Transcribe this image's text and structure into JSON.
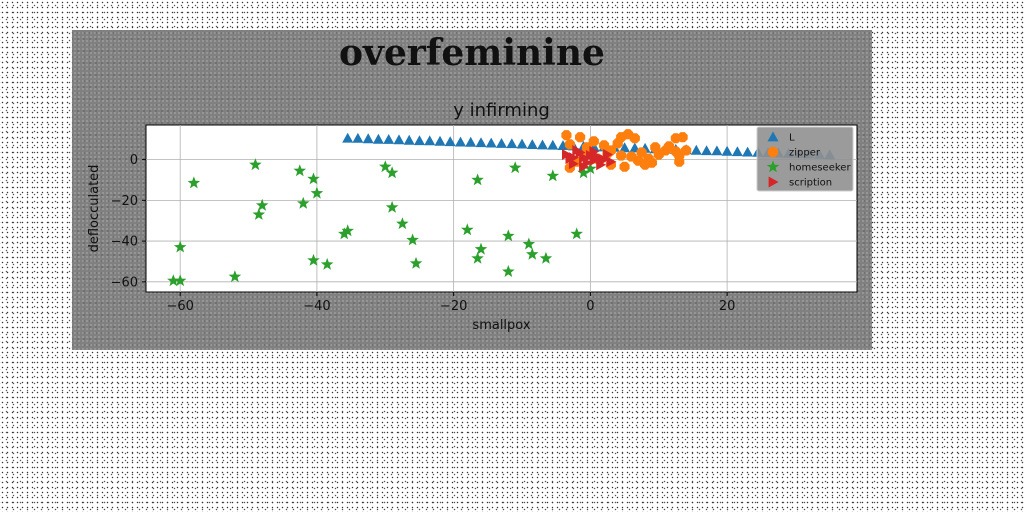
{
  "figure": {
    "suptitle": "overfeminine"
  },
  "chart_data": {
    "type": "scatter",
    "title": "y infirming",
    "xlabel": "smallpox",
    "ylabel": "deflocculated",
    "xlim": [
      -65,
      39
    ],
    "ylim": [
      -65,
      17
    ],
    "xticks": [
      -60,
      -40,
      -20,
      0,
      20
    ],
    "yticks": [
      0,
      -20,
      -40,
      -60
    ],
    "grid": true,
    "legend_position": "top-right",
    "series": [
      {
        "name": "L",
        "marker": "triangle-up",
        "color": "#1f77b4",
        "points": [
          [
            -35.5,
            10.5
          ],
          [
            -34.0,
            10.4
          ],
          [
            -32.5,
            10.2
          ],
          [
            -31.0,
            10.0
          ],
          [
            -29.5,
            9.9
          ],
          [
            -28.0,
            9.7
          ],
          [
            -26.5,
            9.5
          ],
          [
            -25.0,
            9.3
          ],
          [
            -23.5,
            9.2
          ],
          [
            -22.0,
            9.0
          ],
          [
            -20.5,
            8.8
          ],
          [
            -19.0,
            8.6
          ],
          [
            -17.5,
            8.5
          ],
          [
            -16.0,
            8.3
          ],
          [
            -14.5,
            8.1
          ],
          [
            -13.0,
            7.9
          ],
          [
            -11.5,
            7.8
          ],
          [
            -10.0,
            7.6
          ],
          [
            -8.5,
            7.4
          ],
          [
            -7.0,
            7.2
          ],
          [
            -5.5,
            7.1
          ],
          [
            -4.0,
            6.9
          ],
          [
            -2.5,
            6.7
          ],
          [
            -1.0,
            6.5
          ],
          [
            0.5,
            6.4
          ],
          [
            2.0,
            6.2
          ],
          [
            3.5,
            6.0
          ],
          [
            5.0,
            5.8
          ],
          [
            6.5,
            5.7
          ],
          [
            8.0,
            5.5
          ],
          [
            9.5,
            5.3
          ],
          [
            11.0,
            5.1
          ],
          [
            12.5,
            5.0
          ],
          [
            14.0,
            4.8
          ],
          [
            15.5,
            4.6
          ],
          [
            17.0,
            4.4
          ],
          [
            18.5,
            4.3
          ],
          [
            20.0,
            4.1
          ],
          [
            21.5,
            3.9
          ],
          [
            23.0,
            3.7
          ],
          [
            24.5,
            3.6
          ],
          [
            26.0,
            3.4
          ],
          [
            27.5,
            3.2
          ],
          [
            29.0,
            3.0
          ],
          [
            30.5,
            2.9
          ],
          [
            32.0,
            2.7
          ],
          [
            33.5,
            2.5
          ],
          [
            35.0,
            2.3
          ]
        ]
      },
      {
        "name": "zipper",
        "marker": "octagon",
        "color": "#ff7f0e",
        "points": [
          [
            -3.5,
            12.0
          ],
          [
            -1.5,
            11.0
          ],
          [
            0.5,
            9.0
          ],
          [
            -3.0,
            7.5
          ],
          [
            -0.5,
            6.0
          ],
          [
            2.0,
            7.0
          ],
          [
            4.0,
            8.0
          ],
          [
            5.5,
            12.5
          ],
          [
            4.5,
            11.0
          ],
          [
            6.5,
            10.5
          ],
          [
            3.0,
            4.5
          ],
          [
            2.5,
            3.0
          ],
          [
            4.5,
            2.0
          ],
          [
            6.0,
            1.5
          ],
          [
            7.0,
            -0.5
          ],
          [
            3.0,
            -2.5
          ],
          [
            5.0,
            -3.5
          ],
          [
            -3.0,
            -4.0
          ],
          [
            -2.0,
            -1.0
          ],
          [
            8.5,
            0.5
          ],
          [
            9.0,
            -1.5
          ],
          [
            8.0,
            -2.5
          ],
          [
            10.0,
            2.5
          ],
          [
            11.0,
            4.5
          ],
          [
            12.5,
            10.5
          ],
          [
            13.5,
            11.0
          ],
          [
            11.5,
            6.5
          ],
          [
            12.5,
            4.0
          ],
          [
            13.0,
            2.0
          ],
          [
            14.0,
            4.5
          ],
          [
            13.0,
            -1.0
          ],
          [
            9.5,
            6.0
          ],
          [
            7.5,
            3.5
          ],
          [
            1.0,
            0.5
          ],
          [
            -0.5,
            3.0
          ]
        ]
      },
      {
        "name": "homeseeker",
        "marker": "star",
        "color": "#2ca02c",
        "points": [
          [
            -58.0,
            -11.5
          ],
          [
            -61.0,
            -59.5
          ],
          [
            -60.0,
            -59.5
          ],
          [
            -60.0,
            -43.0
          ],
          [
            -52.0,
            -57.5
          ],
          [
            -49.0,
            -2.5
          ],
          [
            -48.5,
            -27.0
          ],
          [
            -48.0,
            -22.5
          ],
          [
            -42.5,
            -5.5
          ],
          [
            -42.0,
            -21.5
          ],
          [
            -40.5,
            -9.5
          ],
          [
            -40.5,
            -49.5
          ],
          [
            -40.0,
            -16.5
          ],
          [
            -38.5,
            -51.5
          ],
          [
            -36.0,
            -36.5
          ],
          [
            -35.5,
            -35.0
          ],
          [
            -30.0,
            -3.5
          ],
          [
            -29.0,
            -6.5
          ],
          [
            -29.0,
            -23.5
          ],
          [
            -27.5,
            -31.5
          ],
          [
            -26.0,
            -39.5
          ],
          [
            -25.5,
            -51.0
          ],
          [
            -18.0,
            -34.5
          ],
          [
            -16.5,
            -10.0
          ],
          [
            -16.5,
            -48.5
          ],
          [
            -16.0,
            -44.0
          ],
          [
            -12.0,
            -55.0
          ],
          [
            -12.0,
            -37.5
          ],
          [
            -11.0,
            -4.0
          ],
          [
            -9.0,
            -41.5
          ],
          [
            -8.5,
            -46.5
          ],
          [
            -6.5,
            -48.5
          ],
          [
            -5.5,
            -8.0
          ],
          [
            -2.0,
            -36.5
          ],
          [
            -1.0,
            -6.5
          ],
          [
            0.0,
            -4.5
          ]
        ]
      },
      {
        "name": "scription",
        "marker": "triangle-right",
        "color": "#d62728",
        "points": [
          [
            -3.5,
            2.5
          ],
          [
            -3.0,
            0.5
          ],
          [
            -2.5,
            -2.0
          ],
          [
            -1.5,
            3.5
          ],
          [
            -1.0,
            1.0
          ],
          [
            -0.5,
            -1.5
          ],
          [
            0.0,
            2.0
          ],
          [
            0.5,
            -0.5
          ],
          [
            1.0,
            1.5
          ],
          [
            1.5,
            -2.5
          ],
          [
            2.0,
            0.0
          ],
          [
            -2.0,
            4.5
          ],
          [
            2.5,
            2.5
          ],
          [
            3.0,
            -1.0
          ],
          [
            -1.0,
            -3.5
          ],
          [
            0.5,
            4.0
          ],
          [
            1.5,
            0.5
          ],
          [
            -2.5,
            1.0
          ]
        ]
      }
    ]
  }
}
